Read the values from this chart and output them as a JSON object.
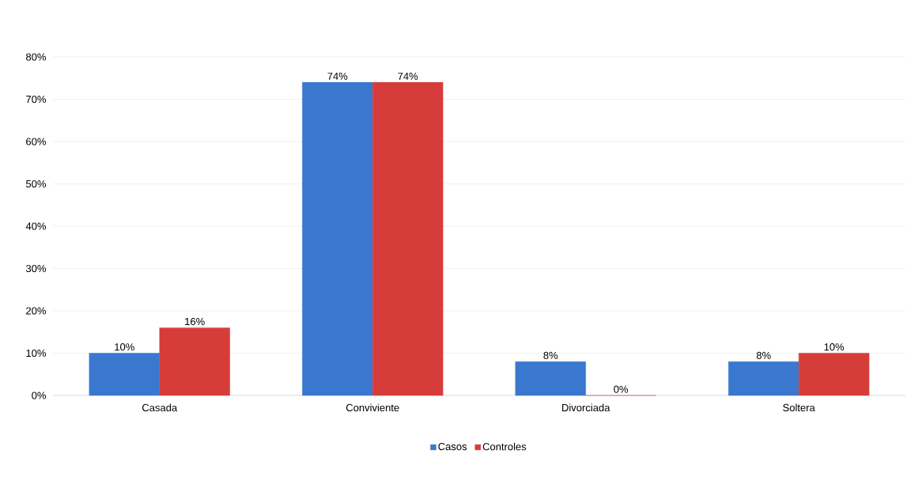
{
  "chart_data": {
    "type": "bar",
    "categories": [
      "Casada",
      "Conviviente",
      "Divorciada",
      "Soltera"
    ],
    "series": [
      {
        "name": "Casos",
        "color": "#3a78cf",
        "values": [
          10,
          74,
          8,
          8
        ],
        "value_labels": [
          "10%",
          "74%",
          "8%",
          "8%"
        ]
      },
      {
        "name": "Controles",
        "color": "#d63d3a",
        "values": [
          16,
          74,
          0,
          10
        ],
        "value_labels": [
          "16%",
          "74%",
          "0%",
          "10%"
        ]
      }
    ],
    "ylim": [
      0,
      80
    ],
    "yticks": [
      {
        "value": 0,
        "label": "0%"
      },
      {
        "value": 10,
        "label": "10%"
      },
      {
        "value": 20,
        "label": "20%"
      },
      {
        "value": 30,
        "label": "30%"
      },
      {
        "value": 40,
        "label": "40%"
      },
      {
        "value": 50,
        "label": "50%"
      },
      {
        "value": 60,
        "label": "60%"
      },
      {
        "value": 70,
        "label": "70%"
      },
      {
        "value": 80,
        "label": "80%"
      }
    ],
    "grid": "y",
    "legend": "bottom"
  }
}
